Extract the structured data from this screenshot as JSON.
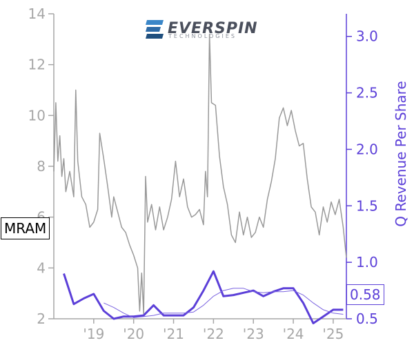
{
  "chart_data": {
    "type": "line",
    "logo": {
      "name": "EVERSPIN",
      "sub": "TECHNOLOGIES",
      "colors": [
        "#3a86c8",
        "#2d6aa6",
        "#1f4f7e"
      ]
    },
    "ticker": "MRAM",
    "last_value_label": "0.58",
    "left_axis": {
      "label": "",
      "range": [
        2,
        14
      ],
      "ticks": [
        2,
        4,
        6,
        8,
        10,
        12,
        14
      ],
      "color": "#a6a6a6"
    },
    "right_axis": {
      "label": "Q Revenue Per Share",
      "range": [
        0.5,
        3.2
      ],
      "ticks": [
        0.5,
        1.0,
        1.5,
        2.0,
        2.5,
        3.0
      ],
      "tick_labels": [
        "0.5",
        "1.0",
        "1.5",
        "2.0",
        "2.5",
        "3.0"
      ],
      "color": "#5b3fd8"
    },
    "x_axis": {
      "range": [
        2018.0,
        2025.33
      ],
      "ticks": [
        2019,
        2020,
        2021,
        2022,
        2023,
        2024,
        2025
      ],
      "tick_labels": [
        "'19",
        "'20",
        "'21",
        "'22",
        "'23",
        "'24",
        "'25"
      ]
    },
    "series": [
      {
        "role": "price",
        "axis": "left",
        "color": "#999999",
        "x": [
          2018.0,
          2018.05,
          2018.1,
          2018.15,
          2018.2,
          2018.25,
          2018.3,
          2018.4,
          2018.5,
          2018.55,
          2018.6,
          2018.7,
          2018.8,
          2018.9,
          2019.0,
          2019.1,
          2019.15,
          2019.25,
          2019.35,
          2019.45,
          2019.5,
          2019.6,
          2019.7,
          2019.8,
          2019.9,
          2020.0,
          2020.1,
          2020.15,
          2020.2,
          2020.25,
          2020.3,
          2020.35,
          2020.45,
          2020.55,
          2020.65,
          2020.75,
          2020.85,
          2020.95,
          2021.05,
          2021.15,
          2021.25,
          2021.35,
          2021.45,
          2021.55,
          2021.65,
          2021.75,
          2021.8,
          2021.85,
          2021.9,
          2021.95,
          2022.05,
          2022.15,
          2022.25,
          2022.35,
          2022.45,
          2022.55,
          2022.65,
          2022.75,
          2022.85,
          2022.95,
          2023.05,
          2023.15,
          2023.25,
          2023.35,
          2023.45,
          2023.55,
          2023.65,
          2023.75,
          2023.85,
          2023.95,
          2024.05,
          2024.15,
          2024.25,
          2024.35,
          2024.45,
          2024.55,
          2024.65,
          2024.75,
          2024.85,
          2024.95,
          2025.05,
          2025.15,
          2025.25,
          2025.33
        ],
        "values": [
          7.8,
          10.5,
          8.2,
          9.2,
          7.6,
          8.3,
          7.0,
          7.8,
          6.8,
          11.0,
          8.2,
          6.8,
          6.5,
          5.6,
          5.8,
          6.3,
          9.3,
          8.3,
          7.2,
          6.0,
          6.8,
          6.2,
          5.6,
          5.4,
          4.9,
          4.5,
          4.0,
          2.3,
          3.8,
          2.2,
          7.6,
          5.8,
          6.5,
          5.5,
          6.4,
          5.5,
          6.0,
          6.7,
          8.2,
          6.8,
          7.5,
          6.4,
          6.0,
          6.1,
          6.3,
          5.7,
          7.8,
          6.8,
          13.2,
          10.5,
          10.4,
          8.4,
          7.2,
          6.5,
          5.3,
          5.0,
          6.2,
          5.3,
          6.0,
          5.2,
          5.4,
          6.0,
          5.6,
          6.7,
          7.4,
          8.3,
          9.9,
          10.3,
          9.6,
          10.2,
          9.4,
          8.8,
          8.9,
          7.5,
          6.4,
          6.2,
          5.3,
          6.4,
          5.8,
          6.6,
          6.1,
          6.7,
          5.6,
          4.4
        ]
      },
      {
        "role": "q_revenue_per_share",
        "axis": "right",
        "color": "#5b3fd8",
        "x": [
          2018.25,
          2018.5,
          2018.75,
          2019.0,
          2019.25,
          2019.5,
          2019.75,
          2020.0,
          2020.25,
          2020.5,
          2020.75,
          2021.0,
          2021.25,
          2021.5,
          2021.75,
          2022.0,
          2022.25,
          2022.5,
          2022.75,
          2023.0,
          2023.25,
          2023.5,
          2023.75,
          2024.0,
          2024.25,
          2024.5,
          2024.75,
          2025.0,
          2025.25
        ],
        "values": [
          0.9,
          0.63,
          0.68,
          0.72,
          0.57,
          0.5,
          0.52,
          0.52,
          0.53,
          0.62,
          0.53,
          0.53,
          0.53,
          0.6,
          0.75,
          0.92,
          0.7,
          0.71,
          0.73,
          0.75,
          0.7,
          0.74,
          0.77,
          0.77,
          0.64,
          0.46,
          0.52,
          0.58,
          0.58
        ]
      },
      {
        "role": "q_revenue_per_share_trend",
        "axis": "right",
        "color": "#7a63e0",
        "x": [
          2019.25,
          2019.5,
          2019.75,
          2020.0,
          2020.25,
          2020.5,
          2020.75,
          2021.0,
          2021.25,
          2021.5,
          2021.75,
          2022.0,
          2022.25,
          2022.5,
          2022.75,
          2023.0,
          2023.25,
          2023.5,
          2023.75,
          2024.0,
          2024.25,
          2024.5,
          2024.75,
          2025.0,
          2025.25
        ],
        "values": [
          0.64,
          0.6,
          0.55,
          0.51,
          0.52,
          0.53,
          0.55,
          0.55,
          0.55,
          0.56,
          0.62,
          0.7,
          0.75,
          0.77,
          0.77,
          0.74,
          0.73,
          0.74,
          0.74,
          0.75,
          0.71,
          0.64,
          0.58,
          0.55,
          0.54
        ]
      }
    ]
  }
}
